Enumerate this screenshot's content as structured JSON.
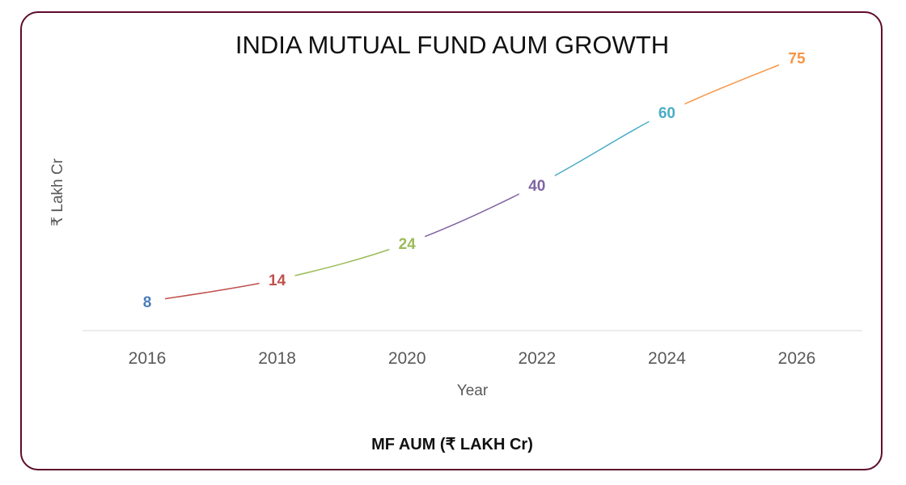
{
  "chart_data": {
    "type": "line",
    "title": "INDIA MUTUAL FUND AUM GROWTH",
    "xlabel": "Year",
    "ylabel": "₹ Lakh Cr",
    "categories": [
      "2016",
      "2018",
      "2020",
      "2022",
      "2024",
      "2026"
    ],
    "values": [
      8,
      14,
      24,
      40,
      60,
      75
    ],
    "point_colors": [
      "#4a7ebb",
      "#c0504d",
      "#9bbb59",
      "#8064a2",
      "#4bacc6",
      "#f79646"
    ],
    "ylim": [
      0,
      80
    ],
    "grid": false,
    "data_labels": true,
    "smooth": true,
    "footer": "MF AUM (₹ LAKH Cr)"
  }
}
